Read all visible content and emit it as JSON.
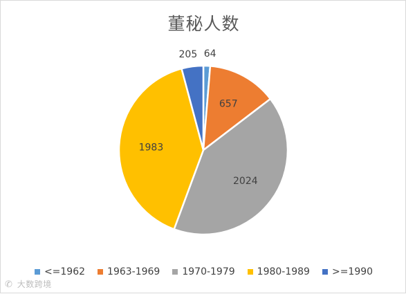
{
  "chart_data": {
    "type": "pie",
    "title": "董秘人数",
    "categories": [
      "<=1962",
      "1963-1969",
      "1970-1979",
      "1980-1989",
      ">=1990"
    ],
    "values": [
      64,
      657,
      2024,
      1983,
      205
    ],
    "data_labels": [
      "64",
      "657",
      "2024",
      "1983",
      "205"
    ],
    "colors": [
      "#5b9bd5",
      "#ed7d31",
      "#a5a5a5",
      "#ffc000",
      "#4472c4"
    ],
    "legend": "bottom",
    "start_angle_deg": 0,
    "direction": "clockwise"
  },
  "watermark": {
    "icon": "weibo-icon",
    "text": "大数跨境"
  }
}
